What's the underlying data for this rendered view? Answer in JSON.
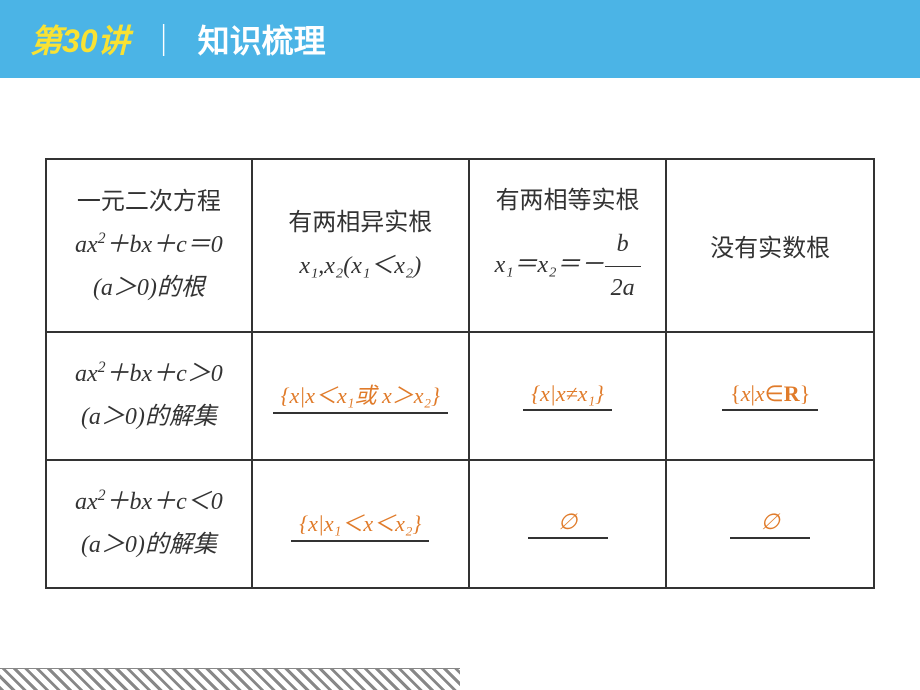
{
  "header": {
    "lecture": "第30讲",
    "divider": "｜",
    "title": "知识梳理"
  },
  "table": {
    "row1": {
      "c1_line1": "一元二次方程",
      "c1_line2_pre": "ax",
      "c1_line2_sup": "2",
      "c1_line2_mid": "＋bx＋c＝0",
      "c1_line3": "(a＞0)的根",
      "c2_line1": "有两相异实根",
      "c2_line2": "x₁,x₂(x₁＜x₂)",
      "c3_line1": "有两相等实根",
      "c3_line2_pre": "x₁＝x₂＝－",
      "c3_frac_top": "b",
      "c3_frac_bot": "2a",
      "c4": "没有实数根"
    },
    "row2": {
      "c1_line1_pre": "ax",
      "c1_line1_sup": "2",
      "c1_line1_mid": "＋bx＋c＞0",
      "c1_line2": "(a＞0)的解集",
      "c2": "{x|x＜x₁或 x＞x₂}",
      "c3": "{x|x≠x₁}",
      "c4": "{x|x∈R}"
    },
    "row3": {
      "c1_line1_pre": "ax",
      "c1_line1_sup": "2",
      "c1_line1_mid": "＋bx＋c＜0",
      "c1_line2": "(a＞0)的解集",
      "c2": "{x|x₁＜x＜x₂}",
      "c3": "∅",
      "c4": "∅"
    }
  },
  "styles": {
    "header_bg": "#4bb4e6",
    "lecture_color": "#f9e233",
    "title_color": "#ffffff",
    "answer_color": "#e07b2a",
    "border_color": "#333333",
    "text_color": "#333333"
  }
}
